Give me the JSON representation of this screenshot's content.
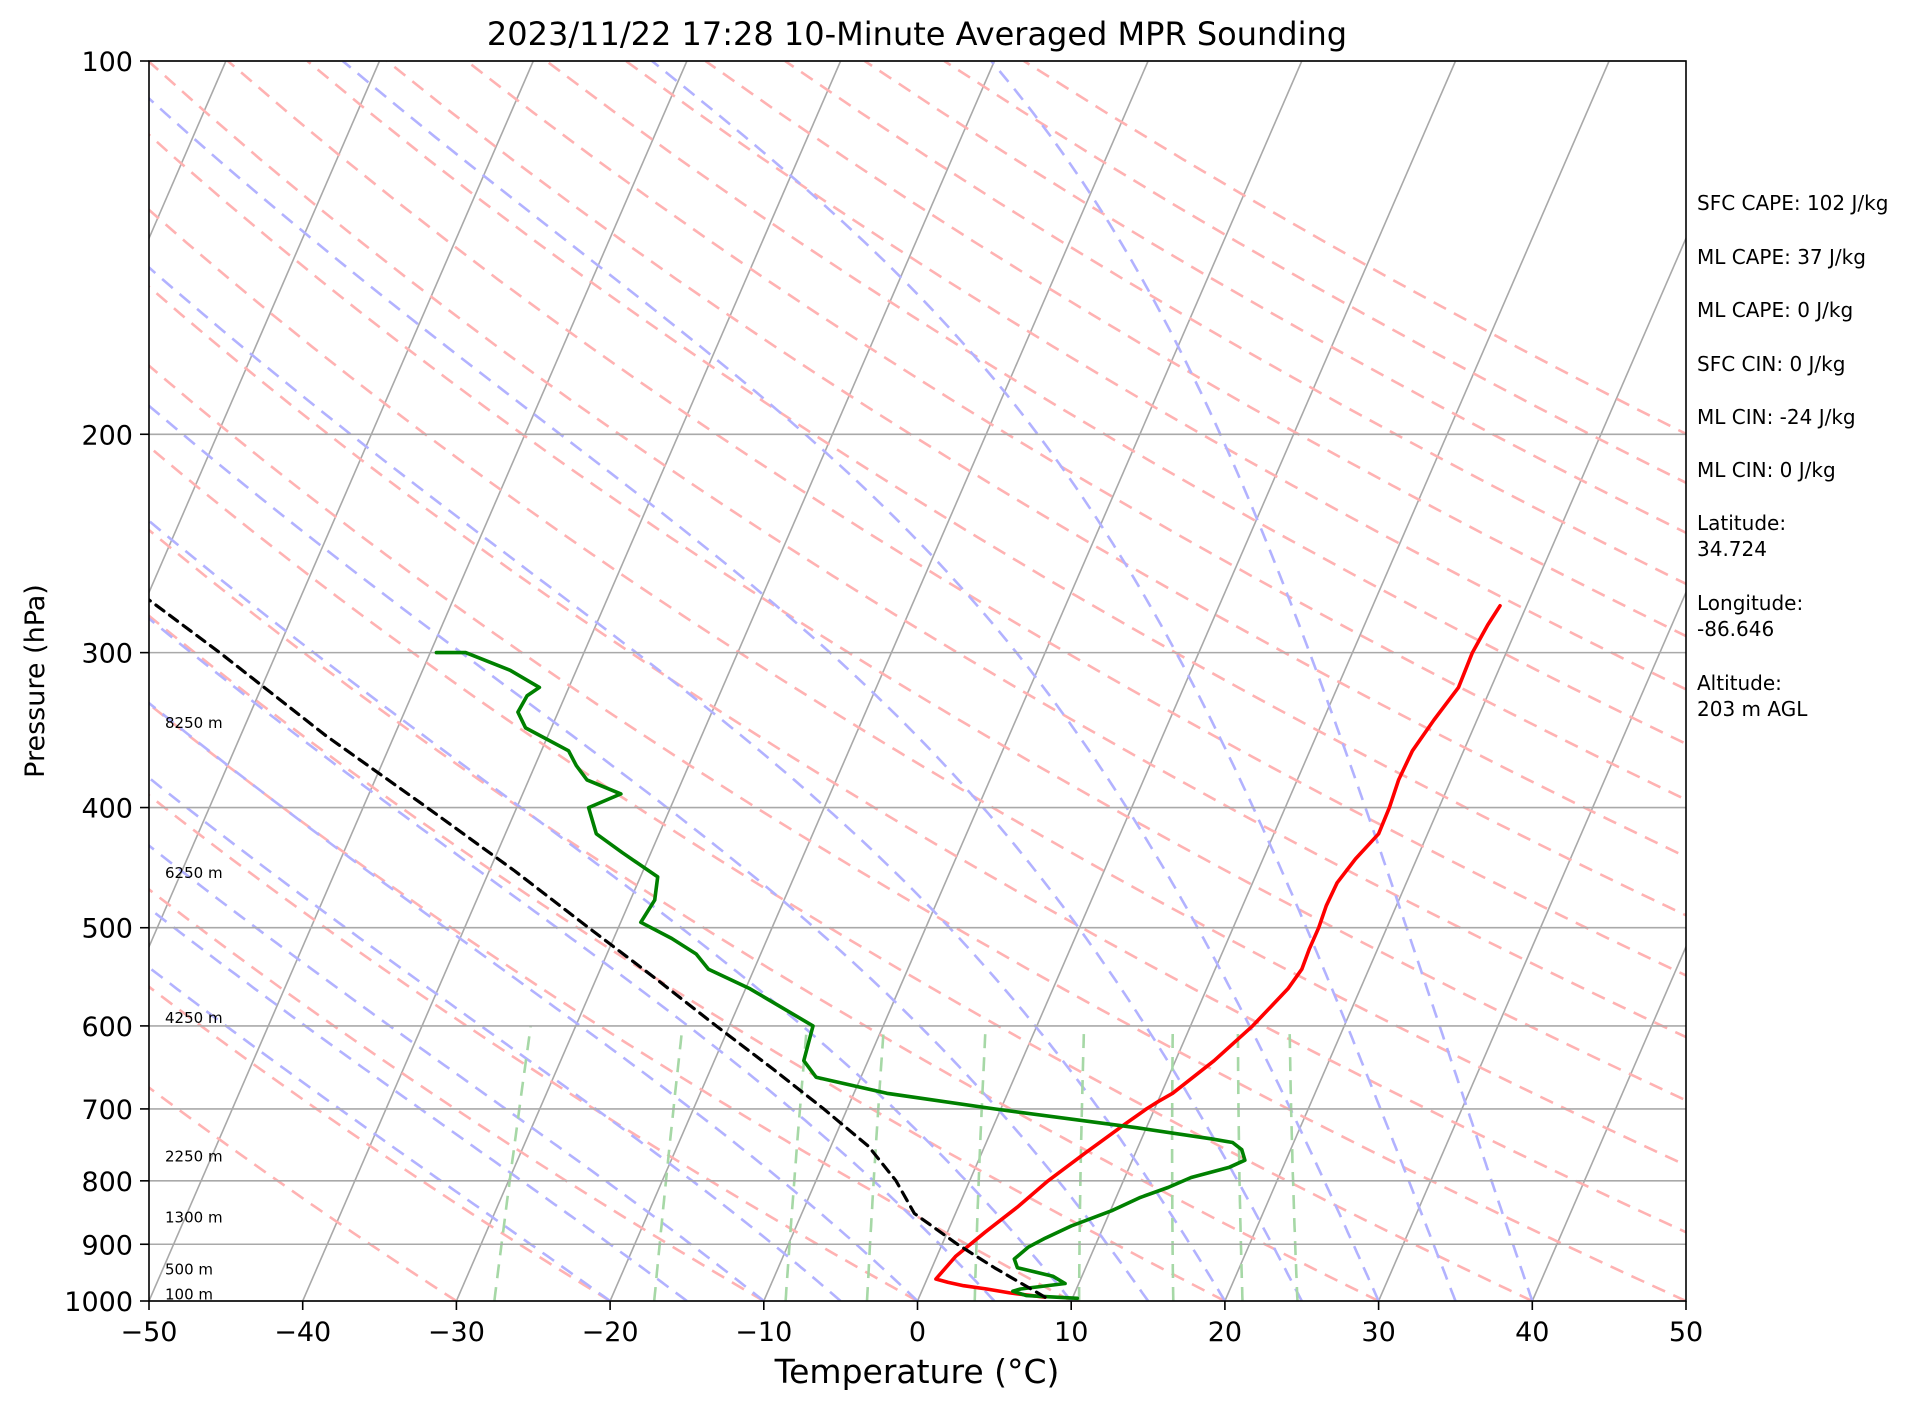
{
  "chart_data": {
    "type": "line",
    "title": "2023/11/22 17:28 10-Minute Averaged MPR Sounding",
    "xlabel": "Temperature (°C)",
    "ylabel": "Pressure (hPa)",
    "xlim": [
      -50,
      50
    ],
    "ylim": [
      1000,
      100
    ],
    "y_scale": "log",
    "x_ticks": [
      -50,
      -40,
      -30,
      -20,
      -10,
      0,
      10,
      20,
      30,
      40,
      50
    ],
    "x_tick_labels": [
      "−50",
      "−40",
      "−30",
      "−20",
      "−10",
      "0",
      "10",
      "20",
      "30",
      "40",
      "50"
    ],
    "y_ticks": [
      100,
      200,
      300,
      400,
      500,
      600,
      700,
      800,
      900,
      1000
    ],
    "y_tick_labels": [
      "100",
      "200",
      "300",
      "400",
      "500",
      "600",
      "700",
      "800",
      "900",
      "1000"
    ],
    "grid": true,
    "background_lines": [
      "skewed isotherms",
      "dry adiabats",
      "moist adiabats",
      "mixing ratio lines"
    ],
    "height_labels": [
      {
        "text": "100 m",
        "p": 997
      },
      {
        "text": "500 m",
        "p": 952
      },
      {
        "text": "1300 m",
        "p": 864
      },
      {
        "text": "2250 m",
        "p": 772
      },
      {
        "text": "4250 m",
        "p": 597
      },
      {
        "text": "6250 m",
        "p": 456
      },
      {
        "text": "8250 m",
        "p": 345
      }
    ],
    "series": [
      {
        "color": "#ff0000",
        "points": [
          {
            "p": 993,
            "t": 8.3
          },
          {
            "p": 985,
            "t": 6.0
          },
          {
            "p": 978,
            "t": 4.5
          },
          {
            "p": 972,
            "t": 3.0
          },
          {
            "p": 966,
            "t": 2.0
          },
          {
            "p": 960,
            "t": 1.2
          },
          {
            "p": 920,
            "t": 2.5
          },
          {
            "p": 880,
            "t": 4.4
          },
          {
            "p": 840,
            "t": 6.5
          },
          {
            "p": 800,
            "t": 8.5
          },
          {
            "p": 760,
            "t": 10.9
          },
          {
            "p": 720,
            "t": 13.5
          },
          {
            "p": 700,
            "t": 14.9
          },
          {
            "p": 690,
            "t": 15.7
          },
          {
            "p": 680,
            "t": 16.6
          },
          {
            "p": 640,
            "t": 19.3
          },
          {
            "p": 600,
            "t": 21.8
          },
          {
            "p": 560,
            "t": 24.1
          },
          {
            "p": 540,
            "t": 25.0
          },
          {
            "p": 520,
            "t": 25.5
          },
          {
            "p": 500,
            "t": 26.1
          },
          {
            "p": 480,
            "t": 26.6
          },
          {
            "p": 460,
            "t": 27.3
          },
          {
            "p": 440,
            "t": 28.5
          },
          {
            "p": 420,
            "t": 30.0
          },
          {
            "p": 400,
            "t": 30.7
          },
          {
            "p": 380,
            "t": 31.3
          },
          {
            "p": 360,
            "t": 32.2
          },
          {
            "p": 340,
            "t": 33.6
          },
          {
            "p": 320,
            "t": 35.2
          },
          {
            "p": 300,
            "t": 36.1
          },
          {
            "p": 285,
            "t": 37.1
          },
          {
            "p": 275,
            "t": 37.9
          }
        ]
      },
      {
        "color": "#008000",
        "points": [
          {
            "p": 995,
            "t": 10.4
          },
          {
            "p": 990,
            "t": 7.1
          },
          {
            "p": 982,
            "t": 6.2
          },
          {
            "p": 978,
            "t": 6.7
          },
          {
            "p": 968,
            "t": 9.6
          },
          {
            "p": 955,
            "t": 8.8
          },
          {
            "p": 940,
            "t": 6.5
          },
          {
            "p": 925,
            "t": 6.3
          },
          {
            "p": 905,
            "t": 7.2
          },
          {
            "p": 890,
            "t": 8.3
          },
          {
            "p": 870,
            "t": 10.0
          },
          {
            "p": 845,
            "t": 12.7
          },
          {
            "p": 825,
            "t": 14.5
          },
          {
            "p": 810,
            "t": 16.3
          },
          {
            "p": 795,
            "t": 17.8
          },
          {
            "p": 780,
            "t": 20.3
          },
          {
            "p": 770,
            "t": 21.3
          },
          {
            "p": 755,
            "t": 21.1
          },
          {
            "p": 745,
            "t": 20.5
          },
          {
            "p": 740,
            "t": 19.1
          },
          {
            "p": 725,
            "t": 14.3
          },
          {
            "p": 700,
            "t": 5.0
          },
          {
            "p": 680,
            "t": -2.0
          },
          {
            "p": 660,
            "t": -6.6
          },
          {
            "p": 640,
            "t": -7.4
          },
          {
            "p": 600,
            "t": -6.8
          },
          {
            "p": 560,
            "t": -10.9
          },
          {
            "p": 540,
            "t": -13.6
          },
          {
            "p": 525,
            "t": -14.4
          },
          {
            "p": 510,
            "t": -16.0
          },
          {
            "p": 495,
            "t": -18.0
          },
          {
            "p": 475,
            "t": -17.1
          },
          {
            "p": 455,
            "t": -16.9
          },
          {
            "p": 435,
            "t": -19.2
          },
          {
            "p": 420,
            "t": -20.9
          },
          {
            "p": 400,
            "t": -21.4
          },
          {
            "p": 390,
            "t": -19.3
          },
          {
            "p": 380,
            "t": -21.5
          },
          {
            "p": 370,
            "t": -22.2
          },
          {
            "p": 360,
            "t": -22.7
          },
          {
            "p": 345,
            "t": -25.5
          },
          {
            "p": 335,
            "t": -26.0
          },
          {
            "p": 325,
            "t": -25.4
          },
          {
            "p": 320,
            "t": -24.6
          },
          {
            "p": 310,
            "t": -26.5
          },
          {
            "p": 300,
            "t": -29.4
          },
          {
            "p": 300,
            "t": -31.3
          }
        ]
      },
      {
        "color": "#000000",
        "dashed": true,
        "points": [
          {
            "p": 993,
            "t": 8.3
          },
          {
            "p": 940,
            "t": 5.0
          },
          {
            "p": 900,
            "t": 2.6
          },
          {
            "p": 850,
            "t": -0.2
          },
          {
            "p": 800,
            "t": -1.4
          },
          {
            "p": 750,
            "t": -3.2
          },
          {
            "p": 700,
            "t": -6.1
          },
          {
            "p": 650,
            "t": -9.4
          },
          {
            "p": 600,
            "t": -13.1
          },
          {
            "p": 550,
            "t": -17.0
          },
          {
            "p": 500,
            "t": -21.4
          },
          {
            "p": 450,
            "t": -26.2
          },
          {
            "p": 400,
            "t": -31.9
          },
          {
            "p": 350,
            "t": -38.5
          },
          {
            "p": 300,
            "t": -45.4
          },
          {
            "p": 272,
            "t": -50.0
          }
        ]
      }
    ]
  },
  "stats": [
    "SFC CAPE: 102 J/kg",
    "ML CAPE: 37 J/kg",
    "ML CAPE: 0 J/kg",
    "SFC CIN: 0 J/kg",
    "ML CIN: -24 J/kg",
    "ML CIN: 0 J/kg",
    "Latitude:",
    "34.724",
    "Longitude:",
    "-86.646",
    "Altitude:",
    "203 m AGL"
  ],
  "colors": {
    "temperature": "#ff0000",
    "dewpoint": "#008000",
    "parcel": "#000000",
    "isotherm": "#a9a9a9",
    "dry_adiabat": "#ffb2b2",
    "moist_adiabat": "#b2b2ff",
    "mixing_ratio": "#a6d8a6"
  }
}
